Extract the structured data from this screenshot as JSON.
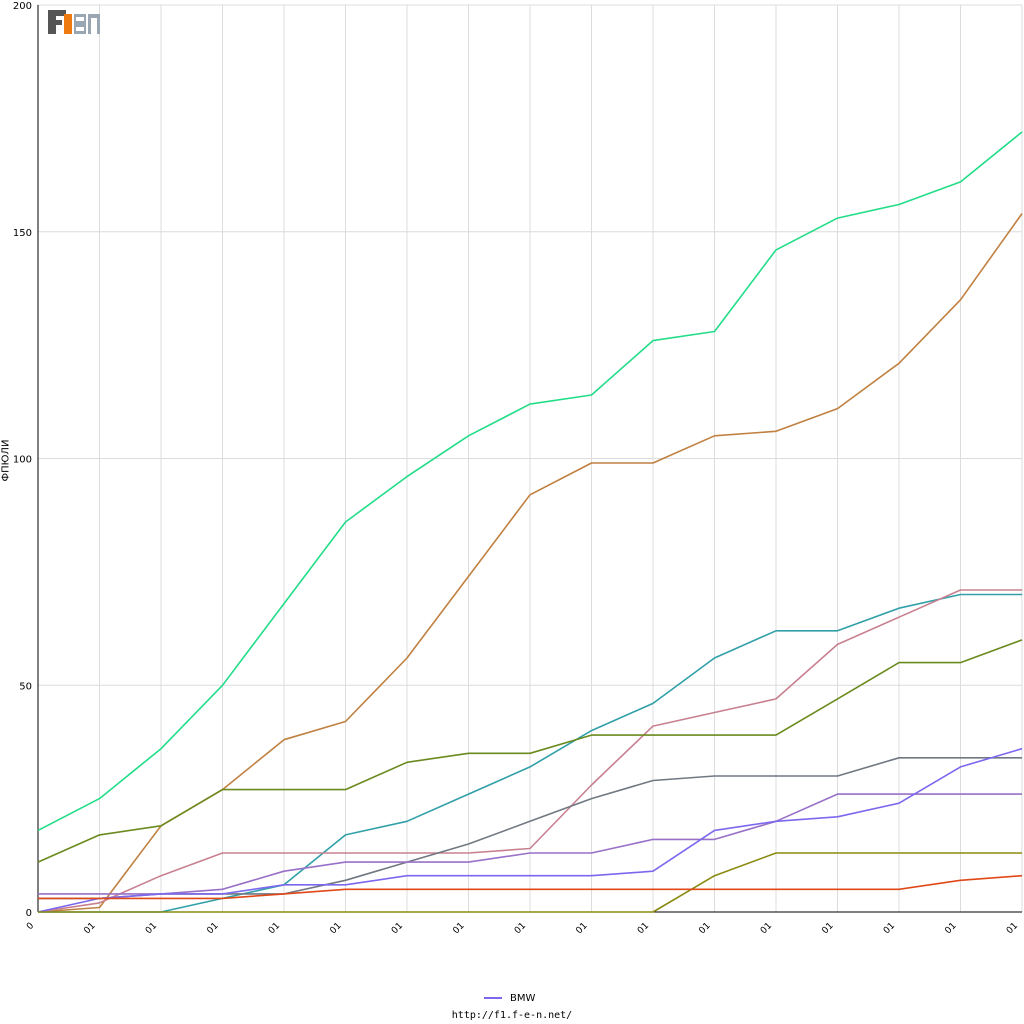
{
  "chart_data": {
    "type": "line",
    "ylabel": "ФПЮЛИ",
    "ylim": [
      0,
      200
    ],
    "y_ticks": [
      "0",
      "50",
      "100",
      "150",
      "200"
    ],
    "x_tick_labels": [
      "0",
      "01",
      "01",
      "01",
      "01",
      "01",
      "01",
      "01",
      "01",
      "01",
      "01",
      "01",
      "01",
      "01",
      "01",
      "01",
      "01"
    ],
    "grid": true,
    "legend_position": "bottom",
    "legend": [
      {
        "name": "BMW",
        "color": "#7b68ee"
      }
    ],
    "x": [
      0,
      1,
      2,
      3,
      4,
      5,
      6,
      7,
      8,
      9,
      10,
      11,
      12,
      13,
      14,
      15,
      16
    ],
    "series": [
      {
        "color": "#22dd88",
        "values": [
          18,
          25,
          36,
          50,
          68,
          86,
          96,
          105,
          112,
          114,
          126,
          128,
          146,
          153,
          156,
          161,
          172
        ]
      },
      {
        "color": "#c08040",
        "values": [
          0,
          1,
          19,
          27,
          38,
          42,
          56,
          74,
          92,
          99,
          99,
          105,
          106,
          111,
          121,
          135,
          154
        ]
      },
      {
        "color": "#30a0a8",
        "values": [
          0,
          0,
          0,
          3,
          6,
          17,
          20,
          26,
          32,
          40,
          46,
          56,
          62,
          62,
          67,
          70,
          70
        ]
      },
      {
        "color": "#c88090",
        "values": [
          0,
          2,
          8,
          13,
          13,
          13,
          13,
          13,
          14,
          28,
          41,
          44,
          47,
          59,
          65,
          71,
          71
        ]
      },
      {
        "color": "#6b8a1e",
        "values": [
          11,
          17,
          19,
          27,
          27,
          27,
          33,
          35,
          35,
          39,
          39,
          39,
          39,
          47,
          55,
          55,
          60
        ]
      },
      {
        "color": "#707882",
        "values": [
          3,
          3,
          4,
          4,
          4,
          7,
          11,
          15,
          20,
          25,
          29,
          30,
          30,
          30,
          34,
          34,
          34
        ]
      },
      {
        "color": "#9870c8",
        "values": [
          4,
          4,
          4,
          5,
          9,
          11,
          11,
          11,
          13,
          13,
          16,
          16,
          20,
          26,
          26,
          26,
          26
        ]
      },
      {
        "color": "#7b68ee",
        "values": [
          0,
          3,
          4,
          4,
          6,
          6,
          8,
          8,
          8,
          8,
          9,
          18,
          20,
          21,
          24,
          32,
          36
        ]
      },
      {
        "color": "#8a8a10",
        "values": [
          0,
          0,
          0,
          0,
          0,
          0,
          0,
          0,
          0,
          0,
          0,
          8,
          13,
          13,
          13,
          13,
          13
        ]
      },
      {
        "color": "#e04818",
        "values": [
          3,
          3,
          3,
          3,
          4,
          5,
          5,
          5,
          5,
          5,
          5,
          5,
          5,
          5,
          5,
          7,
          8
        ]
      }
    ]
  },
  "logo": {
    "text": "F1EN"
  },
  "footer": {
    "url": "http://f1.f-e-n.net/"
  }
}
